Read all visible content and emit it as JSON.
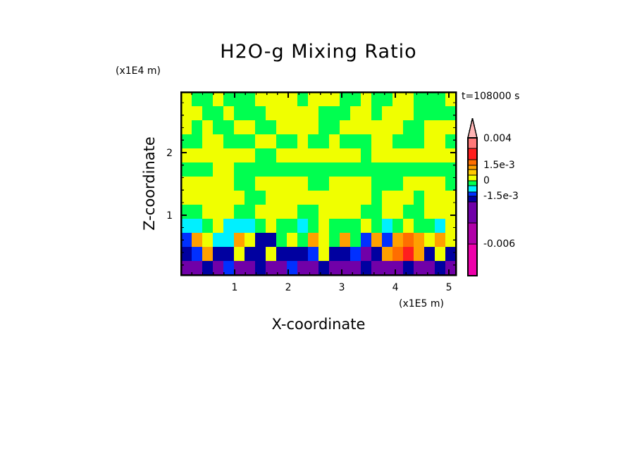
{
  "chart_data": {
    "type": "heatmap",
    "title": "H2O-g Mixing Ratio",
    "xlabel": "X-coordinate",
    "ylabel": "Z-coordinate",
    "x_multiplier_label": "(x1E5 m)",
    "y_multiplier_label": "(x1E4 m)",
    "time_label": "t=108000 s",
    "xlim": [
      0,
      5.13
    ],
    "ylim": [
      0.04,
      2.97
    ],
    "xticks": [
      {
        "v": 1,
        "label": "1"
      },
      {
        "v": 2,
        "label": "2"
      },
      {
        "v": 3,
        "label": "3"
      },
      {
        "v": 4,
        "label": "4"
      },
      {
        "v": 5,
        "label": "5"
      }
    ],
    "yticks": [
      {
        "v": 1,
        "label": "1"
      },
      {
        "v": 2,
        "label": "2"
      }
    ],
    "colorbar": {
      "extend": "max",
      "labels": [
        {
          "level": 0.004,
          "label": "0.004"
        },
        {
          "level": 0.0015,
          "label": "1.5e-3"
        },
        {
          "level": 0,
          "label": "0"
        },
        {
          "level": -0.0015,
          "label": "-1.5e-3"
        },
        {
          "level": -0.006,
          "label": "-0.006"
        }
      ],
      "bands": [
        {
          "color": "#FFB4B4",
          "range": [
            0.004,
            null
          ]
        },
        {
          "color": "#FF7878",
          "range": [
            0.003,
            0.004
          ]
        },
        {
          "color": "#FF1E1E",
          "range": [
            0.002,
            0.003
          ]
        },
        {
          "color": "#FF6E00",
          "range": [
            0.0015,
            0.002
          ]
        },
        {
          "color": "#FFA000",
          "range": [
            0.001,
            0.0015
          ]
        },
        {
          "color": "#FFC800",
          "range": [
            0.0005,
            0.001
          ]
        },
        {
          "color": "#F0FF00",
          "range": [
            0,
            0.0005
          ]
        },
        {
          "color": "#00FF50",
          "range": [
            -0.0005,
            0
          ]
        },
        {
          "color": "#00F0FF",
          "range": [
            -0.001,
            -0.0005
          ]
        },
        {
          "color": "#0030FF",
          "range": [
            -0.0015,
            -0.001
          ]
        },
        {
          "color": "#0000A0",
          "range": [
            -0.002,
            -0.0015
          ]
        },
        {
          "color": "#7000A8",
          "range": [
            -0.004,
            -0.002
          ]
        },
        {
          "color": "#B000A8",
          "range": [
            -0.006,
            -0.004
          ]
        },
        {
          "color": "#EE00AA",
          "range": [
            -0.009,
            -0.006
          ]
        }
      ]
    },
    "z_units_multiplier": 0.001,
    "z_rows_top_to_bottom": [
      [
        0.3,
        -0.3,
        -0.3,
        0.3,
        -0.3,
        -0.3,
        -0.3,
        0.3,
        0.3,
        0.3,
        0.3,
        -0.3,
        0.3,
        0.3,
        0.3,
        -0.3,
        -0.3,
        0.3,
        -0.3,
        -0.3,
        0.3,
        0.3,
        -0.3,
        -0.3,
        -0.3,
        0.3
      ],
      [
        0.3,
        0.3,
        -0.3,
        -0.3,
        0.3,
        -0.3,
        -0.3,
        -0.3,
        0.3,
        0.3,
        0.3,
        0.3,
        0.3,
        -0.3,
        -0.3,
        -0.3,
        0.3,
        0.3,
        -0.3,
        0.3,
        0.3,
        0.3,
        -0.3,
        -0.3,
        -0.3,
        -0.3
      ],
      [
        0.3,
        -0.3,
        0.3,
        -0.3,
        -0.3,
        0.3,
        0.3,
        -0.3,
        -0.3,
        0.3,
        0.3,
        0.3,
        0.3,
        -0.3,
        -0.3,
        0.3,
        0.3,
        0.3,
        0.3,
        0.3,
        0.3,
        -0.3,
        -0.3,
        0.3,
        0.3,
        0.3
      ],
      [
        -0.3,
        -0.3,
        0.3,
        0.3,
        -0.3,
        -0.3,
        -0.3,
        0.3,
        0.3,
        -0.3,
        -0.3,
        0.3,
        -0.3,
        -0.3,
        0.3,
        -0.3,
        -0.3,
        -0.3,
        0.3,
        0.3,
        -0.3,
        -0.3,
        -0.3,
        0.3,
        0.3,
        -0.3
      ],
      [
        0.3,
        0.3,
        0.3,
        0.3,
        0.3,
        0.3,
        0.3,
        -0.3,
        -0.3,
        0.3,
        0.3,
        0.3,
        0.3,
        0.3,
        0.3,
        0.3,
        0.3,
        -0.3,
        0.3,
        0.3,
        0.3,
        0.3,
        0.3,
        0.3,
        0.3,
        0.3
      ],
      [
        -0.3,
        -0.3,
        -0.3,
        0.3,
        0.3,
        -0.3,
        -0.3,
        -0.3,
        -0.3,
        -0.3,
        -0.3,
        -0.3,
        -0.3,
        -0.3,
        -0.3,
        -0.3,
        -0.3,
        -0.3,
        -0.3,
        -0.3,
        -0.3,
        -0.3,
        -0.3,
        -0.3,
        -0.3,
        -0.3
      ],
      [
        0.3,
        0.3,
        0.3,
        0.3,
        0.3,
        -0.3,
        -0.3,
        0.3,
        0.3,
        0.3,
        0.3,
        0.3,
        -0.3,
        -0.3,
        0.3,
        0.3,
        0.3,
        0.3,
        -0.3,
        -0.3,
        -0.3,
        0.3,
        0.3,
        0.3,
        0.3,
        -0.3
      ],
      [
        0.3,
        0.3,
        0.3,
        0.3,
        0.3,
        0.3,
        -0.3,
        -0.3,
        0.3,
        0.3,
        0.3,
        0.3,
        0.3,
        0.3,
        0.3,
        0.3,
        0.3,
        0.3,
        -0.3,
        0.3,
        0.3,
        0.3,
        -0.3,
        0.3,
        0.3,
        0.3
      ],
      [
        -0.3,
        -0.3,
        0.3,
        0.3,
        0.3,
        -0.3,
        -0.3,
        0.3,
        0.3,
        0.3,
        0.3,
        -0.3,
        -0.3,
        0.3,
        0.3,
        0.3,
        0.3,
        -0.3,
        -0.3,
        0.3,
        0.3,
        -0.3,
        -0.3,
        0.3,
        0.3,
        0.3
      ],
      [
        -0.9,
        -0.9,
        -0.3,
        0.3,
        -0.9,
        -0.9,
        -0.9,
        -0.3,
        0.3,
        -0.3,
        -0.3,
        -0.9,
        -0.3,
        0.3,
        -0.3,
        -0.3,
        -0.3,
        0.3,
        -0.3,
        -0.9,
        -0.3,
        0.3,
        -0.3,
        -0.3,
        -0.9,
        0.3
      ],
      [
        -1.2,
        1.2,
        0.3,
        -0.9,
        -0.9,
        1.2,
        0.3,
        -1.8,
        -1.8,
        -0.3,
        0.3,
        -0.3,
        1.2,
        0.3,
        -0.3,
        1.2,
        -0.3,
        -1.2,
        1.2,
        -1.2,
        1.2,
        1.7,
        1.2,
        0.3,
        1.2,
        0.3
      ],
      [
        -1.8,
        -1.2,
        1.2,
        -1.8,
        -1.8,
        0.3,
        -1.8,
        -1.8,
        0.3,
        -1.8,
        -1.8,
        -1.8,
        -1.2,
        0.3,
        -1.8,
        -1.8,
        -1.2,
        -3,
        -1.8,
        1.2,
        1.7,
        2.5,
        1.2,
        -1.8,
        0.3,
        -1.8
      ],
      [
        -3,
        -3,
        -1.8,
        -3,
        -1.2,
        -3,
        -3,
        -1.8,
        -3,
        -3,
        -1.2,
        -3,
        -3,
        -1.8,
        -3,
        -3,
        -3,
        -1.8,
        -3,
        -3,
        -3,
        -1.8,
        -3,
        -3,
        -1.8,
        -3
      ]
    ]
  }
}
